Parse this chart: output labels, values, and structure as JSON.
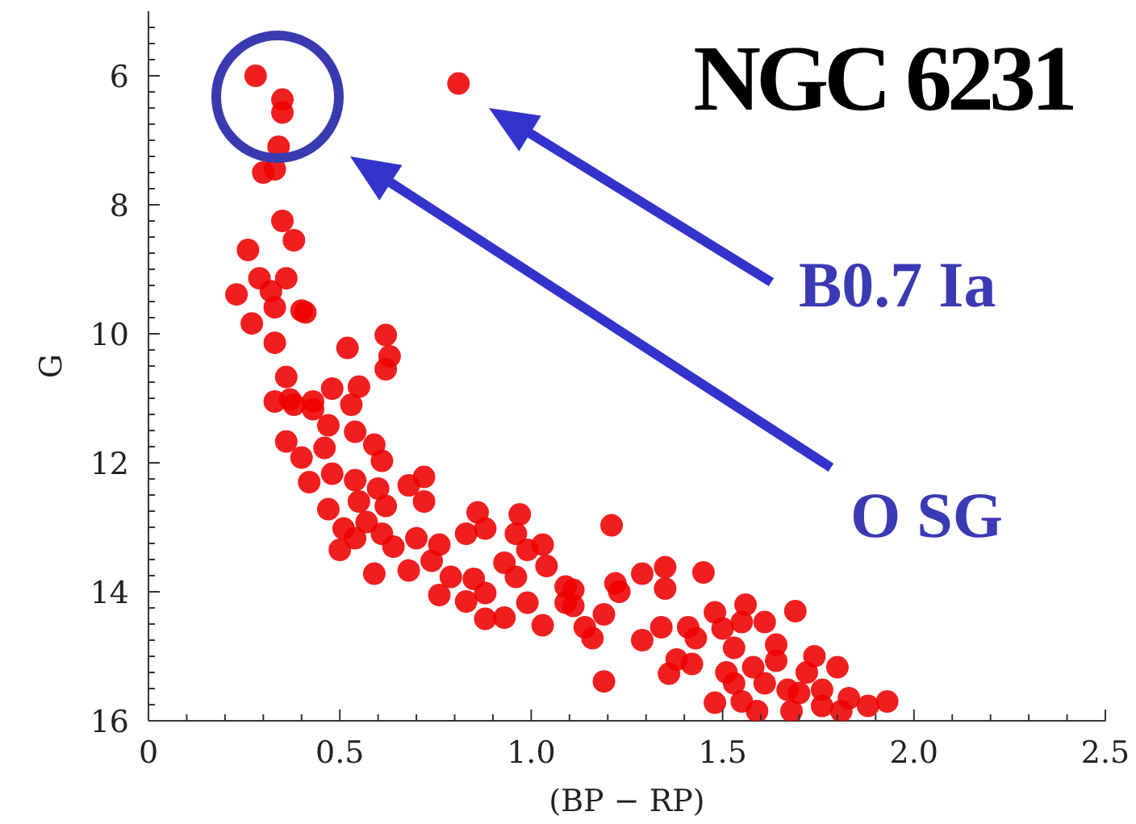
{
  "chart_data": {
    "type": "scatter",
    "title": "NGC 6231",
    "xlabel": "(BP − RP)",
    "ylabel": "G",
    "xlim": [
      0,
      2.5
    ],
    "ylim": [
      16,
      5
    ],
    "xticks": [
      0,
      {
        "value": 0.1,
        "label": null
      },
      {
        "value": 0.2,
        "label": null
      },
      {
        "value": 0.3,
        "label": null
      },
      {
        "value": 0.4,
        "label": null
      },
      0.5,
      {
        "value": 0.6,
        "label": null
      },
      {
        "value": 0.7,
        "label": null
      },
      {
        "value": 0.8,
        "label": null
      },
      {
        "value": 0.9,
        "label": null
      },
      {
        "value": 1,
        "label": "1.0"
      },
      {
        "value": 1.1,
        "label": null
      },
      {
        "value": 1.2,
        "label": null
      },
      {
        "value": 1.3,
        "label": null
      },
      {
        "value": 1.4,
        "label": null
      },
      1.5,
      {
        "value": 1.6,
        "label": null
      },
      {
        "value": 1.7,
        "label": null
      },
      {
        "value": 1.8,
        "label": null
      },
      {
        "value": 1.9,
        "label": null
      },
      {
        "value": 2,
        "label": "2.0"
      },
      {
        "value": 2.1,
        "label": null
      },
      {
        "value": 2.2,
        "label": null
      },
      {
        "value": 2.3,
        "label": null
      },
      {
        "value": 2.4,
        "label": null
      },
      2.5
    ],
    "yticks": [
      {
        "value": 5.25,
        "label": null
      },
      {
        "value": 5.5,
        "label": null
      },
      {
        "value": 5.75,
        "label": null
      },
      6,
      {
        "value": 6.25,
        "label": null
      },
      {
        "value": 6.5,
        "label": null
      },
      {
        "value": 6.75,
        "label": null
      },
      {
        "value": 7,
        "label": null
      },
      {
        "value": 7.25,
        "label": null
      },
      {
        "value": 7.5,
        "label": null
      },
      {
        "value": 7.75,
        "label": null
      },
      8,
      {
        "value": 8.25,
        "label": null
      },
      {
        "value": 8.5,
        "label": null
      },
      {
        "value": 8.75,
        "label": null
      },
      {
        "value": 9,
        "label": null
      },
      {
        "value": 9.25,
        "label": null
      },
      {
        "value": 9.5,
        "label": null
      },
      {
        "value": 9.75,
        "label": null
      },
      10,
      {
        "value": 10.25,
        "label": null
      },
      {
        "value": 10.5,
        "label": null
      },
      {
        "value": 10.75,
        "label": null
      },
      {
        "value": 11,
        "label": null
      },
      {
        "value": 11.25,
        "label": null
      },
      {
        "value": 11.5,
        "label": null
      },
      {
        "value": 11.75,
        "label": null
      },
      12,
      {
        "value": 12.25,
        "label": null
      },
      {
        "value": 12.5,
        "label": null
      },
      {
        "value": 12.75,
        "label": null
      },
      {
        "value": 13,
        "label": null
      },
      {
        "value": 13.25,
        "label": null
      },
      {
        "value": 13.5,
        "label": null
      },
      {
        "value": 13.75,
        "label": null
      },
      14,
      {
        "value": 14.25,
        "label": null
      },
      {
        "value": 14.5,
        "label": null
      },
      {
        "value": 14.75,
        "label": null
      },
      {
        "value": 15,
        "label": null
      },
      {
        "value": 15.25,
        "label": null
      },
      {
        "value": 15.5,
        "label": null
      },
      {
        "value": 15.75,
        "label": null
      },
      16
    ],
    "marker": "circle",
    "series": [
      {
        "color": "#ee0000",
        "x": [
          0.28,
          0.35,
          0.35,
          0.34,
          0.3,
          0.33,
          0.81,
          0.35,
          0.38,
          0.26,
          0.29,
          0.36,
          0.23,
          0.32,
          0.27,
          0.33,
          0.4,
          0.41,
          0.33,
          0.52,
          0.62,
          0.63,
          0.62,
          0.48,
          0.55,
          0.36,
          0.37,
          0.43,
          0.33,
          0.38,
          0.43,
          0.47,
          0.53,
          0.36,
          0.4,
          0.46,
          0.54,
          0.59,
          0.61,
          0.42,
          0.48,
          0.54,
          0.6,
          0.68,
          0.72,
          0.72,
          0.47,
          0.55,
          0.62,
          0.51,
          0.57,
          0.61,
          0.5,
          0.54,
          0.64,
          0.7,
          0.76,
          0.83,
          0.86,
          0.88,
          0.59,
          0.68,
          0.74,
          0.79,
          0.76,
          0.83,
          0.85,
          0.88,
          0.88,
          0.93,
          0.93,
          0.97,
          0.96,
          0.99,
          1.03,
          1.04,
          0.96,
          0.99,
          1.03,
          1.09,
          1.11,
          1.14,
          1.16,
          1.19,
          1.19,
          1.21,
          1.09,
          1.11,
          1.23,
          1.22,
          1.29,
          1.35,
          1.35,
          1.45,
          1.36,
          1.29,
          1.34,
          1.41,
          1.43,
          1.48,
          1.5,
          1.53,
          1.56,
          1.55,
          1.61,
          1.69,
          1.38,
          1.42,
          1.51,
          1.53,
          1.58,
          1.64,
          1.64,
          1.74,
          1.8,
          1.48,
          1.55,
          1.59,
          1.67,
          1.68,
          1.72,
          1.76,
          1.76,
          1.81,
          1.83,
          1.88,
          1.93,
          1.7,
          1.61
        ],
        "values": [
          6.0,
          6.37,
          6.57,
          7.1,
          7.5,
          7.45,
          6.12,
          8.25,
          8.55,
          8.7,
          9.14,
          9.14,
          9.39,
          9.34,
          9.84,
          9.59,
          9.64,
          9.67,
          10.14,
          10.22,
          10.02,
          10.35,
          10.55,
          10.85,
          10.82,
          10.67,
          11.02,
          11.05,
          11.05,
          11.1,
          11.17,
          11.42,
          11.1,
          11.67,
          11.92,
          11.77,
          11.52,
          11.72,
          11.97,
          12.3,
          12.17,
          12.27,
          12.4,
          12.35,
          12.22,
          12.6,
          12.72,
          12.6,
          12.67,
          13.02,
          12.92,
          13.1,
          13.35,
          13.17,
          13.3,
          13.17,
          13.27,
          13.1,
          12.77,
          13.02,
          13.72,
          13.67,
          13.52,
          13.77,
          14.05,
          14.15,
          13.8,
          14.02,
          14.42,
          14.4,
          13.55,
          12.8,
          13.1,
          13.35,
          13.27,
          13.6,
          13.77,
          14.17,
          14.52,
          14.17,
          13.97,
          14.55,
          14.72,
          15.39,
          14.35,
          12.97,
          13.92,
          14.22,
          14.0,
          13.87,
          13.72,
          13.62,
          13.95,
          13.7,
          15.27,
          14.75,
          14.55,
          14.55,
          14.72,
          14.32,
          14.57,
          14.87,
          14.2,
          14.47,
          14.47,
          14.3,
          15.05,
          15.12,
          15.25,
          15.42,
          15.17,
          14.82,
          15.07,
          15.0,
          15.17,
          15.72,
          15.7,
          15.85,
          15.52,
          15.85,
          15.25,
          15.52,
          15.77,
          15.85,
          15.65,
          15.77,
          15.7,
          15.57,
          15.42
        ]
      }
    ],
    "annotations": [
      "O SG",
      "B0.7 Ia"
    ]
  }
}
